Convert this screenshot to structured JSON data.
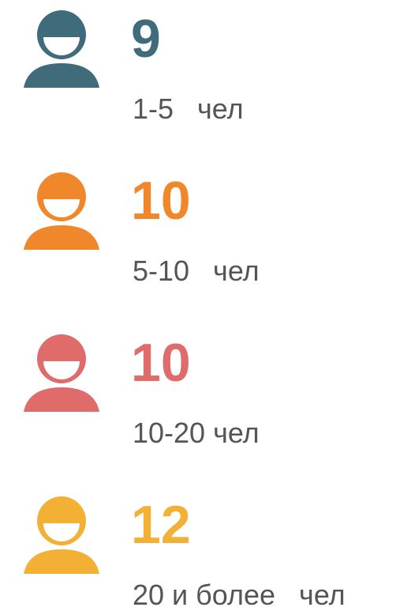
{
  "items": [
    {
      "value": "9",
      "label": "1-5   чел",
      "color": "#3f6b7b"
    },
    {
      "value": "10",
      "label": "5-10   чел",
      "color": "#f0872a"
    },
    {
      "value": "10",
      "label": "10-20 чел",
      "color": "#df6b6b"
    },
    {
      "value": "12",
      "label": "20 и более   чел",
      "color": "#f2b134"
    }
  ]
}
